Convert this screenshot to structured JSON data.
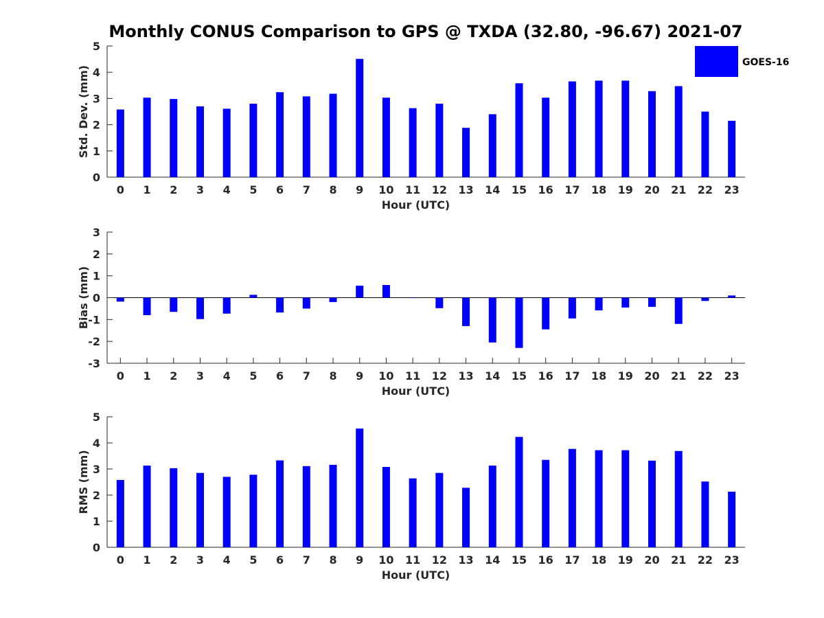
{
  "chart_data": [
    {
      "type": "bar",
      "title": "Monthly CONUS Comparison to GPS @ TXDA (32.80, -96.67) 2021-07",
      "xlabel": "Hour (UTC)",
      "ylabel": "Std. Dev. (mm)",
      "ylim": [
        0,
        5
      ],
      "yticks": [
        "0",
        "1",
        "2",
        "3",
        "4",
        "5"
      ],
      "categories": [
        "0",
        "1",
        "2",
        "3",
        "4",
        "5",
        "6",
        "7",
        "8",
        "9",
        "10",
        "11",
        "12",
        "13",
        "14",
        "15",
        "16",
        "17",
        "18",
        "19",
        "20",
        "21",
        "22",
        "23"
      ],
      "series": [
        {
          "name": "GOES-16",
          "color": "#0000ff",
          "values": [
            2.58,
            3.03,
            2.98,
            2.7,
            2.61,
            2.8,
            3.24,
            3.08,
            3.18,
            4.51,
            3.03,
            2.63,
            2.8,
            1.88,
            2.4,
            3.58,
            3.03,
            3.65,
            3.68,
            3.68,
            3.28,
            3.47,
            2.5,
            2.15
          ]
        }
      ],
      "legend": {
        "position": "top-right"
      },
      "grid": false
    },
    {
      "type": "bar",
      "xlabel": "Hour (UTC)",
      "ylabel": "Bias (mm)",
      "ylim": [
        -3,
        3
      ],
      "yticks": [
        "-3",
        "-2",
        "-1",
        "0",
        "1",
        "2",
        "3"
      ],
      "categories": [
        "0",
        "1",
        "2",
        "3",
        "4",
        "5",
        "6",
        "7",
        "8",
        "9",
        "10",
        "11",
        "12",
        "13",
        "14",
        "15",
        "16",
        "17",
        "18",
        "19",
        "20",
        "21",
        "22",
        "23"
      ],
      "series": [
        {
          "name": "GOES-16",
          "color": "#0000ff",
          "values": [
            -0.18,
            -0.8,
            -0.65,
            -0.98,
            -0.73,
            0.13,
            -0.68,
            -0.5,
            -0.2,
            0.55,
            0.58,
            -0.02,
            -0.48,
            -1.3,
            -2.05,
            -2.3,
            -1.45,
            -0.95,
            -0.58,
            -0.45,
            -0.42,
            -1.2,
            -0.15,
            0.1
          ]
        }
      ],
      "grid": false
    },
    {
      "type": "bar",
      "xlabel": "Hour (UTC)",
      "ylabel": "RMS (mm)",
      "ylim": [
        0,
        5
      ],
      "yticks": [
        "0",
        "1",
        "2",
        "3",
        "4",
        "5"
      ],
      "categories": [
        "0",
        "1",
        "2",
        "3",
        "4",
        "5",
        "6",
        "7",
        "8",
        "9",
        "10",
        "11",
        "12",
        "13",
        "14",
        "15",
        "16",
        "17",
        "18",
        "19",
        "20",
        "21",
        "22",
        "23"
      ],
      "series": [
        {
          "name": "GOES-16",
          "color": "#0000ff",
          "values": [
            2.58,
            3.13,
            3.03,
            2.85,
            2.7,
            2.78,
            3.33,
            3.11,
            3.16,
            4.55,
            3.08,
            2.64,
            2.85,
            2.28,
            3.13,
            4.23,
            3.35,
            3.77,
            3.72,
            3.72,
            3.32,
            3.69,
            2.52,
            2.13
          ]
        }
      ],
      "grid": false
    }
  ]
}
